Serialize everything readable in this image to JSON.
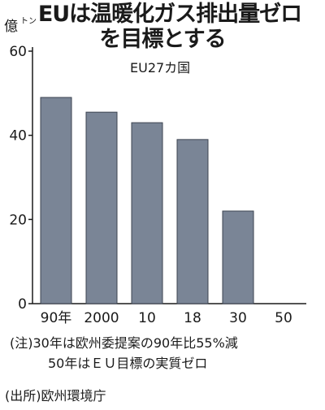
{
  "title_line1": "EUは温暖化ガス排出量ゼロ",
  "title_line2": "を目標とする",
  "subtitle": "EU27カ国",
  "unit_main": "億",
  "unit_sub": "トン",
  "note_line1": "(注)30年は欧州委提案の90年比55%減",
  "note_line2": "50年はＥＵ目標の実質ゼロ",
  "source": "(出所)欧州環境庁",
  "colors": {
    "bar": "#7a8596",
    "bar_edge": "#3c4450",
    "axis": "#1a1a1a"
  },
  "chart_data": {
    "type": "bar",
    "categories": [
      "90年",
      "2000",
      "10",
      "18",
      "30",
      "50"
    ],
    "values": [
      49,
      45.5,
      43,
      39,
      22,
      0
    ],
    "ylim": [
      0,
      60
    ],
    "yticks": [
      0,
      20,
      40,
      60
    ],
    "ytick_labels": [
      "0",
      "20",
      "40",
      "60"
    ],
    "grid": false
  }
}
